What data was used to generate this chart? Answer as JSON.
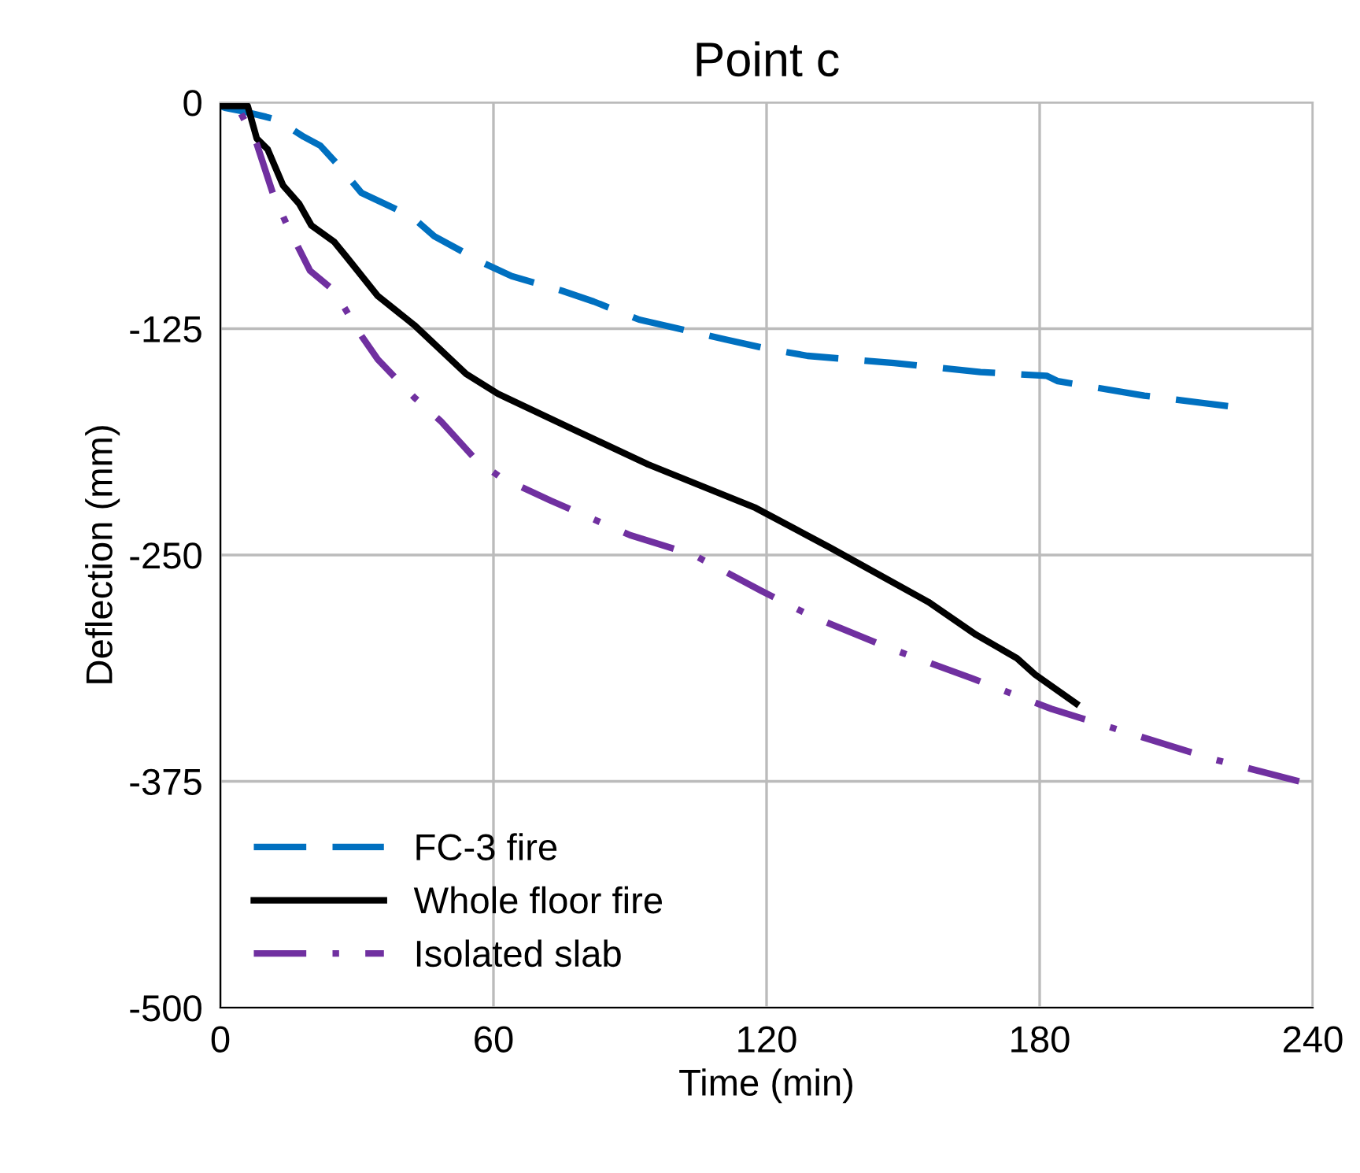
{
  "chart_data": {
    "type": "line",
    "title": "Point c",
    "xlabel": "Time (min)",
    "ylabel": "Deflection (mm)",
    "xlim": [
      0,
      240
    ],
    "xticks": [
      0,
      60,
      120,
      180,
      240
    ],
    "ylim": [
      -500,
      0
    ],
    "yticks": [
      -500,
      -375,
      -250,
      -125,
      0
    ],
    "grid": true,
    "legend": "bottom left",
    "series": [
      {
        "name": "FC-3 fire",
        "color": "#0070c0",
        "line_style": "dashed",
        "x": [
          0,
          1,
          5,
          10,
          12.8,
          18.3,
          22,
          26,
          31,
          42,
          47,
          58,
          64,
          75,
          82,
          92,
          99,
          111,
          120,
          129,
          148,
          167,
          181.5,
          184,
          203,
          222
        ],
        "values": [
          -2,
          -3,
          -5,
          -8,
          -10,
          -19,
          -24,
          -35,
          -50,
          -63,
          -74,
          -89,
          -96,
          -104,
          -110,
          -120,
          -124,
          -131,
          -136,
          -140,
          -144,
          -149,
          -151,
          -154,
          -162,
          -168
        ]
      },
      {
        "name": "Whole floor fire",
        "color": "#000000",
        "line_style": "solid",
        "x": [
          0,
          6,
          8,
          10.4,
          13.8,
          17.3,
          20,
          25,
          27.6,
          34.6,
          42.6,
          54,
          61,
          77,
          94,
          117.6,
          134,
          155.6,
          166,
          175,
          179,
          188
        ],
        "values": [
          -2,
          -2,
          -20,
          -26,
          -46,
          -56,
          -68,
          -77,
          -85,
          -107,
          -123,
          -150,
          -161,
          -180,
          -200,
          -224,
          -246,
          -276,
          -294,
          -307,
          -316,
          -332
        ]
      },
      {
        "name": "Isolated slab",
        "color": "#7030a0",
        "line_style": "dashdot",
        "x": [
          0,
          1,
          4.5,
          8,
          11.5,
          14.5,
          19.7,
          25,
          31,
          34.6,
          42.6,
          48.4,
          56,
          61.5,
          72.6,
          90,
          104,
          119,
          130,
          147.6,
          165,
          182.6,
          200.5,
          218.5,
          237
        ],
        "values": [
          -2,
          -3,
          -6,
          -23,
          -50,
          -67,
          -93,
          -104,
          -129,
          -142,
          -163,
          -176,
          -197,
          -207,
          -220,
          -239,
          -250,
          -270,
          -284,
          -302,
          -318,
          -335,
          -349,
          -363,
          -375
        ]
      }
    ]
  }
}
